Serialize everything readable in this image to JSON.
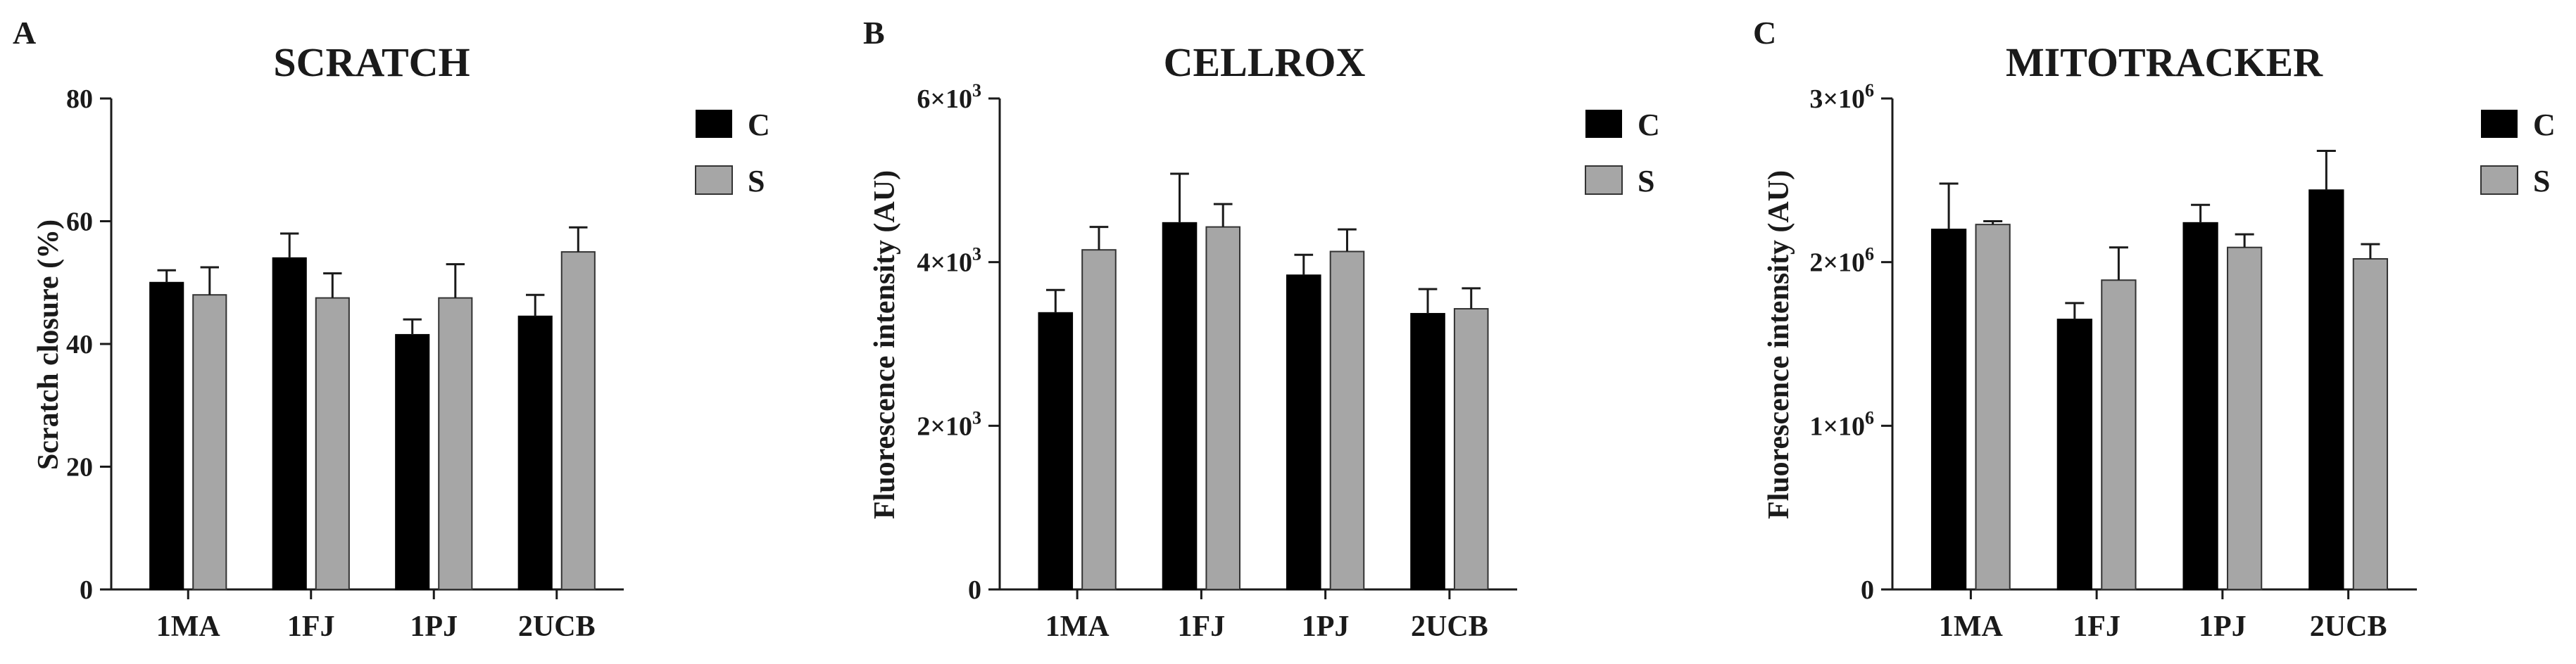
{
  "colors": {
    "C": "#000000",
    "S": "#a6a6a6",
    "axis": "#1a1a1a",
    "error_bar": "#1a1a1a"
  },
  "chart_data": [
    {
      "type": "bar",
      "panel": "A",
      "title": "SCRATCH",
      "xlabel": "",
      "ylabel": "Scratch closure  (%)",
      "categories": [
        "1MA",
        "1FJ",
        "1PJ",
        "2UCB"
      ],
      "ylim": [
        0,
        80
      ],
      "yticks": [
        {
          "value": 0,
          "label": "0"
        },
        {
          "value": 20,
          "label": "20"
        },
        {
          "value": 40,
          "label": "40"
        },
        {
          "value": 60,
          "label": "60"
        },
        {
          "value": 80,
          "label": "80"
        }
      ],
      "series": [
        {
          "name": "C",
          "values": [
            50,
            54,
            41.5,
            44.5
          ],
          "errors": [
            2,
            4,
            2.5,
            3.5
          ]
        },
        {
          "name": "S",
          "values": [
            48,
            47.5,
            47.5,
            55
          ],
          "errors": [
            4.5,
            4,
            5.5,
            4
          ]
        }
      ],
      "legend": "top-right",
      "grid": false
    },
    {
      "type": "bar",
      "panel": "B",
      "title": "CELLROX",
      "xlabel": "",
      "ylabel": "Fluorescence intensity (AU)",
      "categories": [
        "1MA",
        "1FJ",
        "1PJ",
        "2UCB"
      ],
      "ylim": [
        0,
        6000
      ],
      "yticks": [
        {
          "value": 0,
          "label": "0"
        },
        {
          "value": 2000,
          "label": "2×10",
          "exp": "3"
        },
        {
          "value": 4000,
          "label": "4×10",
          "exp": "3"
        },
        {
          "value": 6000,
          "label": "6×10",
          "exp": "3"
        }
      ],
      "series": [
        {
          "name": "C",
          "values": [
            3380,
            4480,
            3840,
            3370
          ],
          "errors": [
            280,
            600,
            250,
            300
          ]
        },
        {
          "name": "S",
          "values": [
            4150,
            4430,
            4130,
            3430
          ],
          "errors": [
            280,
            280,
            270,
            250
          ]
        }
      ],
      "legend": "top-right",
      "grid": false
    },
    {
      "type": "bar",
      "panel": "C",
      "title": "MITOTRACKER",
      "xlabel": "",
      "ylabel": "Fluorescence intensity (AU)",
      "categories": [
        "1MA",
        "1FJ",
        "1PJ",
        "2UCB"
      ],
      "ylim": [
        0,
        3000000
      ],
      "yticks": [
        {
          "value": 0,
          "label": "0"
        },
        {
          "value": 1000000,
          "label": "1×10",
          "exp": "6"
        },
        {
          "value": 2000000,
          "label": "2×10",
          "exp": "6"
        },
        {
          "value": 3000000,
          "label": "3×10",
          "exp": "6"
        }
      ],
      "series": [
        {
          "name": "C",
          "values": [
            2200000,
            1650000,
            2240000,
            2440000
          ],
          "errors": [
            280000,
            100000,
            110000,
            240000
          ]
        },
        {
          "name": "S",
          "values": [
            2230000,
            1890000,
            2090000,
            2020000
          ],
          "errors": [
            20000,
            200000,
            80000,
            90000
          ]
        }
      ],
      "legend": "top-right",
      "grid": false
    }
  ]
}
